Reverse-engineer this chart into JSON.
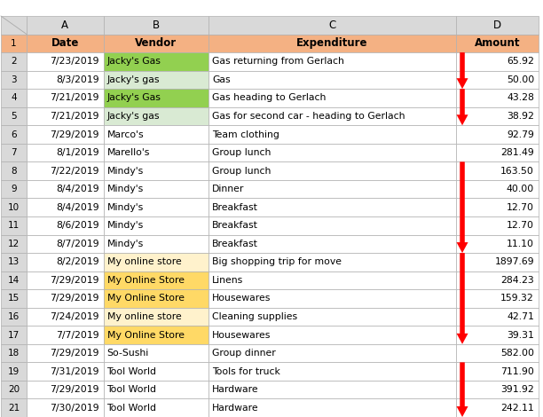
{
  "headers": [
    "Date",
    "Vendor",
    "Expenditure",
    "Amount"
  ],
  "col_letters": [
    "A",
    "B",
    "C",
    "D"
  ],
  "rows": [
    [
      "7/23/2019",
      "Jacky's Gas",
      "Gas returning from Gerlach",
      "65.92"
    ],
    [
      "8/3/2019",
      "Jacky's gas",
      "Gas",
      "50.00"
    ],
    [
      "7/21/2019",
      "Jacky's Gas",
      "Gas heading to Gerlach",
      "43.28"
    ],
    [
      "7/21/2019",
      "Jacky's gas",
      "Gas for second car - heading to Gerlach",
      "38.92"
    ],
    [
      "7/29/2019",
      "Marco's",
      "Team clothing",
      "92.79"
    ],
    [
      "8/1/2019",
      "Marello's",
      "Group lunch",
      "281.49"
    ],
    [
      "7/22/2019",
      "Mindy's",
      "Group lunch",
      "163.50"
    ],
    [
      "8/4/2019",
      "Mindy's",
      "Dinner",
      "40.00"
    ],
    [
      "8/4/2019",
      "Mindy's",
      "Breakfast",
      "12.70"
    ],
    [
      "8/6/2019",
      "Mindy's",
      "Breakfast",
      "12.70"
    ],
    [
      "8/7/2019",
      "Mindy's",
      "Breakfast",
      "11.10"
    ],
    [
      "8/2/2019",
      "My online store",
      "Big shopping trip for move",
      "1897.69"
    ],
    [
      "7/29/2019",
      "My Online Store",
      "Linens",
      "284.23"
    ],
    [
      "7/29/2019",
      "My Online Store",
      "Housewares",
      "159.32"
    ],
    [
      "7/24/2019",
      "My online store",
      "Cleaning supplies",
      "42.71"
    ],
    [
      "7/7/2019",
      "My Online Store",
      "Housewares",
      "39.31"
    ],
    [
      "7/29/2019",
      "So-Sushi",
      "Group dinner",
      "582.00"
    ],
    [
      "7/31/2019",
      "Tool World",
      "Tools for truck",
      "711.90"
    ],
    [
      "7/29/2019",
      "Tool World",
      "Hardware",
      "391.92"
    ],
    [
      "7/30/2019",
      "Tool World",
      "Hardware",
      "242.11"
    ]
  ],
  "vendor_colors": {
    "Jacky's Gas": "#92d050",
    "Jacky's gas": "#d9ead3",
    "My Online Store": "#ffd966",
    "My online store": "#fff2cc"
  },
  "header_bg": "#f4b183",
  "col_letter_bg": "#d9d9d9",
  "row_num_bg": "#d9d9d9",
  "cell_bg": "#ffffff",
  "grid_color": "#b0b0b0",
  "arrow_color": "#ff0000",
  "arrow_groups": [
    [
      0,
      1
    ],
    [
      2,
      3
    ],
    [
      6,
      7,
      8,
      9,
      10
    ],
    [
      11,
      12,
      13,
      14,
      15
    ],
    [
      17,
      18,
      19
    ]
  ],
  "figsize": [
    6.12,
    4.7
  ],
  "dpi": 100
}
